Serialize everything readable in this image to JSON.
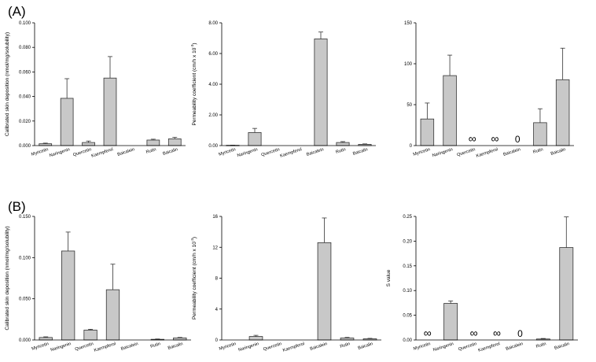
{
  "panel_labels": [
    "(A)",
    "(B)"
  ],
  "style": {
    "bar_fill": "#c8c8c8",
    "bar_stroke": "#333333",
    "axis_color": "#000000"
  },
  "chart_data": [
    {
      "type": "bar",
      "panel": "A",
      "categories": [
        "Myricetin",
        "Naringenin",
        "Quercetin",
        "Kaempferol",
        "Baicalein",
        "Rutin",
        "Baicalin"
      ],
      "values": [
        0.0015,
        0.0385,
        0.0025,
        0.055,
        null,
        0.0045,
        0.0055
      ],
      "errors": [
        0.0005,
        0.016,
        0.0012,
        0.0175,
        null,
        0.0007,
        0.0012
      ],
      "ylabel": "Calibrated skin deposition (nmol/mg/solubility)",
      "ylim": [
        0,
        0.1
      ],
      "yticks": [
        0,
        0.02,
        0.04,
        0.06,
        0.08,
        0.1
      ],
      "yticklabels": [
        "0.000",
        "0.020",
        "0.040",
        "0.060",
        "0.080",
        "0.100"
      ],
      "annotations": []
    },
    {
      "type": "bar",
      "panel": "A",
      "categories": [
        "Myricetin",
        "Naringenin",
        "Quercetin",
        "Kaempferol",
        "Baicalein",
        "Rutin",
        "Baicalin"
      ],
      "values": [
        0.02,
        0.85,
        null,
        null,
        6.95,
        0.2,
        0.08
      ],
      "errors": [
        0.01,
        0.27,
        null,
        null,
        0.45,
        0.06,
        0.03
      ],
      "ylabel_parts": [
        "Permeability coefficient (cm/h x 10",
        "-3",
        ")"
      ],
      "ylim": [
        0,
        8
      ],
      "yticks": [
        0,
        2,
        4,
        6,
        8
      ],
      "yticklabels": [
        "0.00",
        "2.00",
        "4.00",
        "6.00",
        "8.00"
      ],
      "annotations": []
    },
    {
      "type": "bar",
      "panel": "A",
      "categories": [
        "Myricetin",
        "Naringenin",
        "Quercetin",
        "Kaempferol",
        "Baicalein",
        "Rutin",
        "Baicalin"
      ],
      "values": [
        32.5,
        85.5,
        null,
        null,
        null,
        28,
        80.5
      ],
      "errors": [
        19.5,
        25,
        null,
        null,
        null,
        17,
        38.5
      ],
      "ylabel": "",
      "ylim": [
        0,
        150
      ],
      "yticks": [
        0,
        50,
        100,
        150
      ],
      "yticklabels": [
        "0",
        "50",
        "100",
        "150"
      ],
      "annotations": [
        {
          "category": "Quercetin",
          "text": "∞"
        },
        {
          "category": "Kaempferol",
          "text": "∞"
        },
        {
          "category": "Baicalein",
          "text": "0"
        }
      ]
    },
    {
      "type": "bar",
      "panel": "B",
      "categories": [
        "Myricetin",
        "Naringenin",
        "Quercetin",
        "Kaempferol",
        "Baicalein",
        "Rutin",
        "Baicalin"
      ],
      "values": [
        0.003,
        0.108,
        0.012,
        0.061,
        null,
        0.0008,
        0.0025
      ],
      "errors": [
        0.0008,
        0.023,
        0.001,
        0.031,
        null,
        0.0004,
        0.0006
      ],
      "ylabel": "Calibrated skin deposition (nmol/mg/solubility)",
      "ylim": [
        0,
        0.15
      ],
      "yticks": [
        0,
        0.05,
        0.1,
        0.15
      ],
      "yticklabels": [
        "0.000",
        "0.050",
        "0.100",
        "0.150"
      ],
      "annotations": []
    },
    {
      "type": "bar",
      "panel": "B",
      "categories": [
        "Myricetin",
        "Naringenin",
        "Quercetin",
        "Kaempferol",
        "Baicalein",
        "Rutin",
        "Baicalin"
      ],
      "values": [
        null,
        0.45,
        null,
        null,
        12.6,
        0.25,
        0.15
      ],
      "errors": [
        null,
        0.15,
        null,
        null,
        3.2,
        0.08,
        0.06
      ],
      "ylabel_parts": [
        "Permeability coefficient (cm/h x 10",
        "-3",
        ")"
      ],
      "ylim": [
        0,
        16
      ],
      "yticks": [
        0,
        4,
        8,
        12,
        16
      ],
      "yticklabels": [
        "0",
        "4",
        "8",
        "12",
        "16"
      ],
      "annotations": []
    },
    {
      "type": "bar",
      "panel": "B",
      "categories": [
        "Myricetin",
        "Naringenin",
        "Quercetin",
        "Kaempferol",
        "Baicalein",
        "Rutin",
        "Baicalin"
      ],
      "values": [
        null,
        0.074,
        null,
        null,
        null,
        0.002,
        0.187
      ],
      "errors": [
        null,
        0.005,
        null,
        null,
        null,
        0.001,
        0.062
      ],
      "ylabel": "S value",
      "ylim": [
        0,
        0.25
      ],
      "yticks": [
        0,
        0.05,
        0.1,
        0.15,
        0.2,
        0.25
      ],
      "yticklabels": [
        "0.00",
        "0.05",
        "0.10",
        "0.15",
        "0.20",
        "0.25"
      ],
      "annotations": [
        {
          "category": "Myricetin",
          "text": "∞"
        },
        {
          "category": "Quercetin",
          "text": "∞"
        },
        {
          "category": "Kaempferol",
          "text": "∞"
        },
        {
          "category": "Baicalein",
          "text": "0"
        }
      ]
    }
  ]
}
